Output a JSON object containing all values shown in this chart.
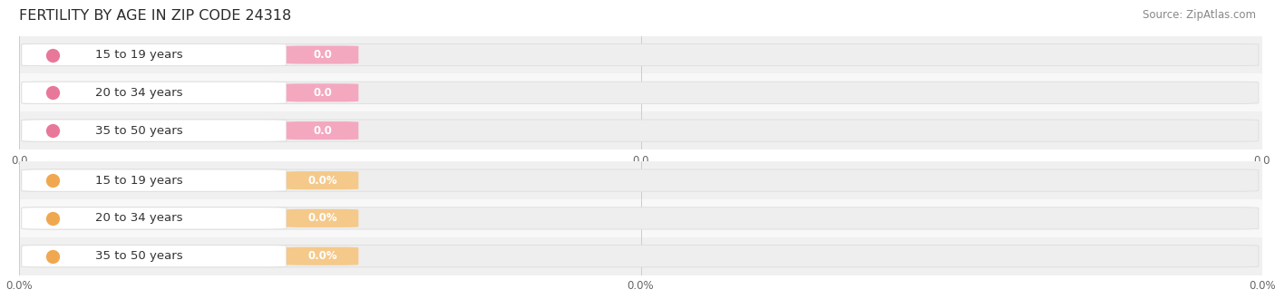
{
  "title": "FERTILITY BY AGE IN ZIP CODE 24318",
  "source": "Source: ZipAtlas.com",
  "top_section": {
    "categories": [
      "15 to 19 years",
      "20 to 34 years",
      "35 to 50 years"
    ],
    "values": [
      0.0,
      0.0,
      0.0
    ],
    "bar_color": "#f4a8bf",
    "dot_color": "#e8789a",
    "bar_bg": "#eeeeee",
    "row_colors": [
      "#f0f0f0",
      "#f8f8f8",
      "#f0f0f0"
    ],
    "xtick_labels": [
      "0.0",
      "0.0",
      "0.0"
    ]
  },
  "bottom_section": {
    "categories": [
      "15 to 19 years",
      "20 to 34 years",
      "35 to 50 years"
    ],
    "values": [
      0.0,
      0.0,
      0.0
    ],
    "bar_color": "#f5c98a",
    "dot_color": "#f0a850",
    "bar_bg": "#eeeeee",
    "row_colors": [
      "#f0f0f0",
      "#f8f8f8",
      "#f0f0f0"
    ],
    "xtick_labels": [
      "0.0%",
      "0.0%",
      "0.0%"
    ]
  },
  "bg_color": "#ffffff",
  "grid_color": "#cccccc",
  "label_fontsize": 9.5,
  "title_fontsize": 11.5,
  "source_fontsize": 8.5
}
